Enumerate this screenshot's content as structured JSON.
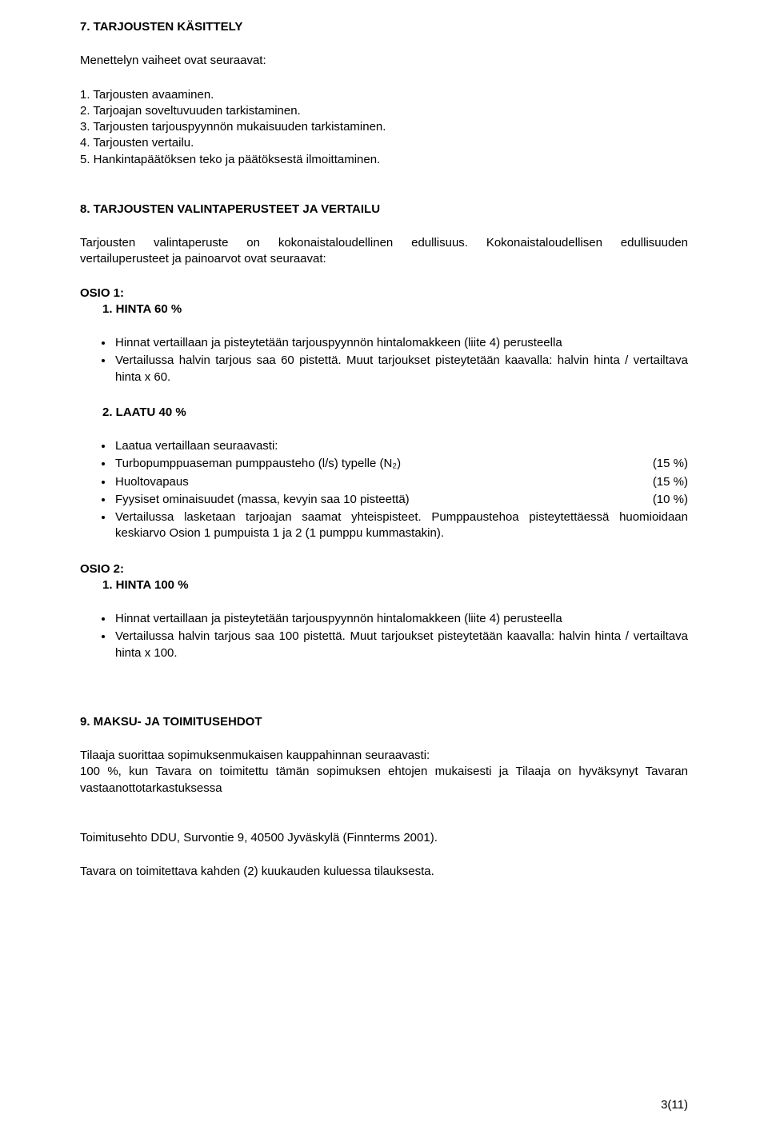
{
  "s7": {
    "heading": "7. TARJOUSTEN KÄSITTELY",
    "intro": "Menettelyn vaiheet ovat seuraavat:",
    "items": [
      "1. Tarjousten avaaminen.",
      "2. Tarjoajan soveltuvuuden tarkistaminen.",
      "3. Tarjousten tarjouspyynnön mukaisuuden tarkistaminen.",
      "4. Tarjousten vertailu.",
      "5. Hankintapäätöksen teko ja päätöksestä ilmoittaminen."
    ]
  },
  "s8": {
    "heading": "8. TARJOUSTEN VALINTAPERUSTEET JA VERTAILU",
    "p1": "Tarjousten valintaperuste on kokonaistaloudellinen edullisuus. Kokonaistaloudellisen edullisuuden vertailuperusteet ja painoarvot ovat seuraavat:",
    "osio1_label": "OSIO 1:",
    "osio1_item1": "1. HINTA 60 %",
    "osio1_bullets1": [
      "Hinnat vertaillaan ja pisteytetään tarjouspyynnön hintalomakkeen (liite 4) perusteella",
      "Vertailussa halvin tarjous saa 60 pistettä. Muut tarjoukset pisteytetään kaavalla: halvin hinta / vertailtava hinta x 60."
    ],
    "osio1_item2": "2. LAATU 40 %",
    "laatu_intro": "Laatua vertaillaan seuraavasti:",
    "laatu_rows": [
      {
        "left": "Turbopumppuaseman pumppausteho (l/s) typelle (N₂)",
        "right": "(15 %)"
      },
      {
        "left": "Huoltovapaus",
        "right": "(15 %)"
      },
      {
        "left": "Fyysiset ominaisuudet (massa, kevyin saa 10 pisteettä)",
        "right": "(10 %)"
      }
    ],
    "laatu_tail": "Vertailussa lasketaan tarjoajan saamat yhteispisteet. Pumppaustehoa pisteytettäessä huomioidaan keskiarvo Osion 1 pumpuista 1 ja 2 (1 pumppu kummastakin).",
    "osio2_label": "OSIO 2:",
    "osio2_item1": "1. HINTA 100 %",
    "osio2_bullets": [
      "Hinnat vertaillaan ja pisteytetään tarjouspyynnön hintalomakkeen (liite 4) perusteella",
      "Vertailussa halvin tarjous saa 100 pistettä. Muut tarjoukset pisteytetään kaavalla: halvin hinta / vertailtava hinta x 100."
    ]
  },
  "s9": {
    "heading": "9. MAKSU- JA TOIMITUSEHDOT",
    "p1": "Tilaaja suorittaa sopimuksenmukaisen kauppahinnan seuraavasti:",
    "p2": "100 %, kun Tavara on toimitettu tämän sopimuksen ehtojen mukaisesti ja Tilaaja on hyväksynyt Tavaran vastaanottotarkastuksessa",
    "p3": "Toimitusehto DDU, Survontie 9, 40500 Jyväskylä (Finnterms 2001).",
    "p4": "Tavara on toimitettava kahden (2) kuukauden kuluessa tilauksesta."
  },
  "pagenum": "3(11)"
}
